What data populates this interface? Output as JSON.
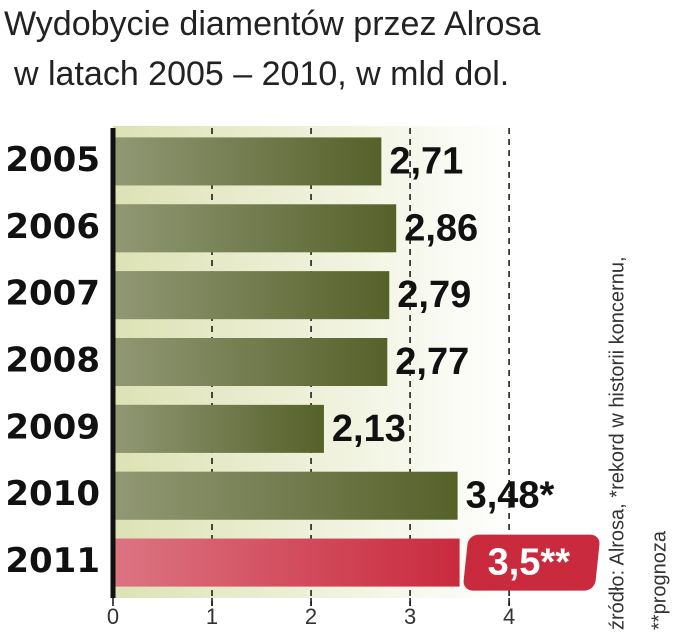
{
  "chart_data": {
    "type": "hbar",
    "title": "Wydobycie diamentów przez Alrosa",
    "subtitle": "w latach 2005 – 2010, w mld dol.",
    "source": "źródło: Alrosa, *rekord w historii koncernu,",
    "note": "**prognoza",
    "categories": [
      "2005",
      "2006",
      "2007",
      "2008",
      "2009",
      "2010",
      "2011"
    ],
    "values": [
      2.71,
      2.86,
      2.79,
      2.77,
      2.13,
      3.48,
      3.5
    ],
    "value_labels": [
      "2,71",
      "2,86",
      "2,79",
      "2,77",
      "2,13",
      "3,48*",
      "3,5**"
    ],
    "colors": [
      "#56612a",
      "#56612a",
      "#56612a",
      "#56612a",
      "#56612a",
      "#56612a",
      "#c92a3e"
    ],
    "xlim": [
      0,
      4.1
    ],
    "xticks": [
      0,
      1,
      2,
      3,
      4
    ],
    "grid": true
  }
}
